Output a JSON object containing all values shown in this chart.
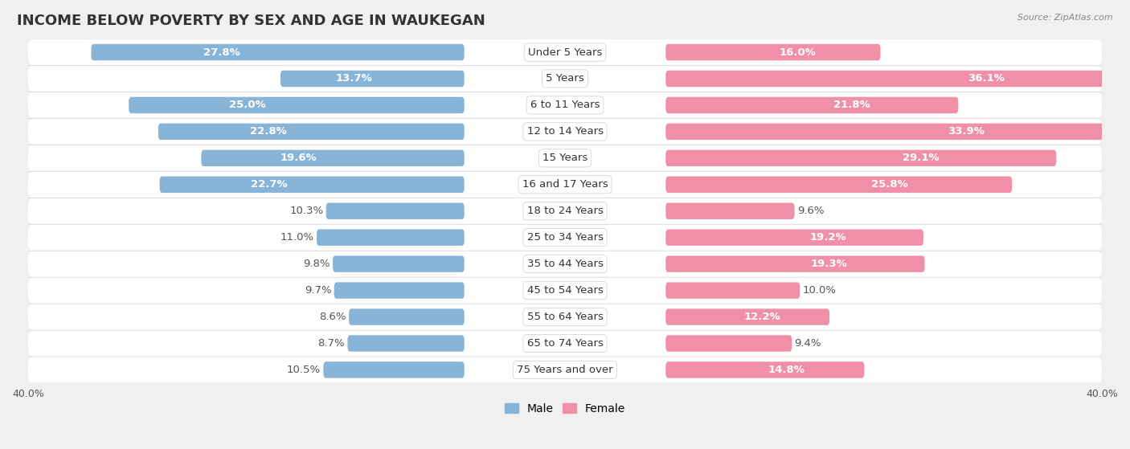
{
  "title": "INCOME BELOW POVERTY BY SEX AND AGE IN WAUKEGAN",
  "source": "Source: ZipAtlas.com",
  "categories": [
    "Under 5 Years",
    "5 Years",
    "6 to 11 Years",
    "12 to 14 Years",
    "15 Years",
    "16 and 17 Years",
    "18 to 24 Years",
    "25 to 34 Years",
    "35 to 44 Years",
    "45 to 54 Years",
    "55 to 64 Years",
    "65 to 74 Years",
    "75 Years and over"
  ],
  "male": [
    27.8,
    13.7,
    25.0,
    22.8,
    19.6,
    22.7,
    10.3,
    11.0,
    9.8,
    9.7,
    8.6,
    8.7,
    10.5
  ],
  "female": [
    16.0,
    36.1,
    21.8,
    33.9,
    29.1,
    25.8,
    9.6,
    19.2,
    19.3,
    10.0,
    12.2,
    9.4,
    14.8
  ],
  "male_color": "#88b4d8",
  "female_color": "#f090a8",
  "background_color": "#f0f0f0",
  "row_bg_light": "#f8f8f8",
  "row_bg_dark": "#ececec",
  "xlim": 40.0,
  "bar_height": 0.62,
  "title_fontsize": 13,
  "label_fontsize": 9.5,
  "axis_fontsize": 9,
  "category_fontsize": 9.5,
  "inside_threshold": 12.0
}
